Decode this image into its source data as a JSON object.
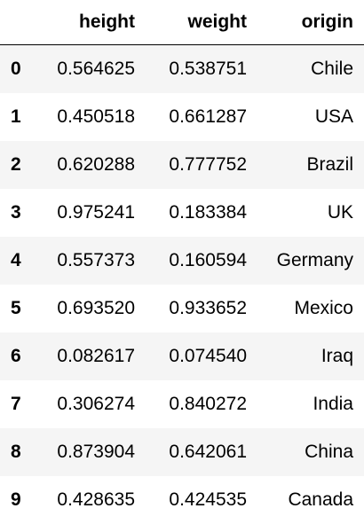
{
  "table": {
    "index_header": "",
    "columns": [
      "height",
      "weight",
      "origin"
    ],
    "rows": [
      {
        "index": "0",
        "height": "0.564625",
        "weight": "0.538751",
        "origin": "Chile"
      },
      {
        "index": "1",
        "height": "0.450518",
        "weight": "0.661287",
        "origin": "USA"
      },
      {
        "index": "2",
        "height": "0.620288",
        "weight": "0.777752",
        "origin": "Brazil"
      },
      {
        "index": "3",
        "height": "0.975241",
        "weight": "0.183384",
        "origin": "UK"
      },
      {
        "index": "4",
        "height": "0.557373",
        "weight": "0.160594",
        "origin": "Germany"
      },
      {
        "index": "5",
        "height": "0.693520",
        "weight": "0.933652",
        "origin": "Mexico"
      },
      {
        "index": "6",
        "height": "0.082617",
        "weight": "0.074540",
        "origin": "Iraq"
      },
      {
        "index": "7",
        "height": "0.306274",
        "weight": "0.840272",
        "origin": "India"
      },
      {
        "index": "8",
        "height": "0.873904",
        "weight": "0.642061",
        "origin": "China"
      },
      {
        "index": "9",
        "height": "0.428635",
        "weight": "0.424535",
        "origin": "Canada"
      }
    ]
  }
}
